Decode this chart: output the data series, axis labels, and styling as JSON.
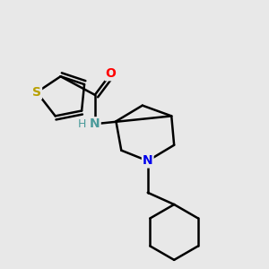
{
  "background_color": "#e8e8e8",
  "bond_color": "#000000",
  "bond_width": 1.8,
  "atom_colors": {
    "S": "#b8a000",
    "O": "#ff0000",
    "N_amide": "#4a9a9a",
    "N_pip": "#0000ee",
    "H": "#4a9a9a",
    "C": "#000000"
  },
  "figsize": [
    3.0,
    3.0
  ],
  "dpi": 100
}
